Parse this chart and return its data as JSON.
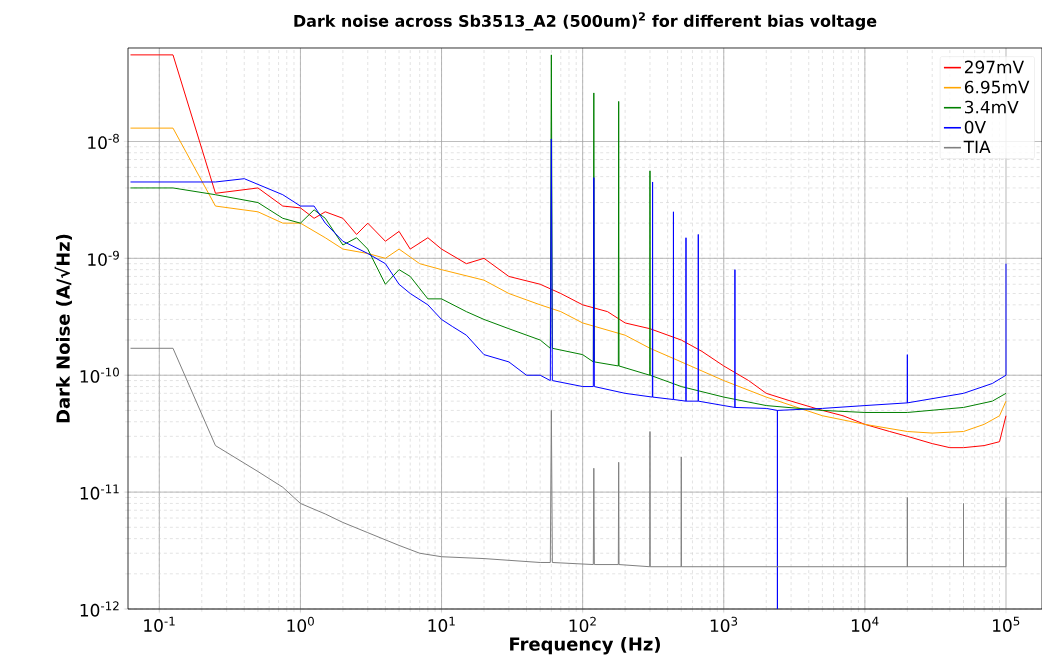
{
  "chart_data": {
    "type": "line",
    "title": "Dark noise across Sb3513_A2 (500um)$^{2}$ for different bias voltage",
    "xlabel": "Frequency (Hz)",
    "ylabel": "Dark Noise (A/√Hz)",
    "log": "xy",
    "grid": true,
    "legend": "top right",
    "marker": "none",
    "line_style": "solid",
    "xlim": [
      0.06,
      180000
    ],
    "ylim": [
      1e-12,
      6.3e-08
    ],
    "xticks": [
      {
        "value": 0.1,
        "label": "10$^{-1}$"
      },
      {
        "value": 1,
        "label": "10$^{0}$"
      },
      {
        "value": 10,
        "label": "10$^{1}$"
      },
      {
        "value": 100,
        "label": "10$^{2}$"
      },
      {
        "value": 1000,
        "label": "10$^{3}$"
      },
      {
        "value": 10000,
        "label": "10$^{4}$"
      },
      {
        "value": 100000,
        "label": "10$^{5}$"
      }
    ],
    "yticks": [
      {
        "value": 1e-12,
        "label": "10$^{-12}$"
      },
      {
        "value": 1e-11,
        "label": "10$^{-11}$"
      },
      {
        "value": 1e-10,
        "label": "10$^{-10}$"
      },
      {
        "value": 1e-09,
        "label": "10$^{-9}$"
      },
      {
        "value": 1e-08,
        "label": "10$^{-8}$"
      }
    ],
    "series": [
      {
        "name": "297mV",
        "color": "#ff0000",
        "x": [
          0.0625,
          0.125,
          0.25,
          0.5,
          0.75,
          1,
          1.25,
          1.5,
          2,
          2.5,
          3,
          4,
          5,
          6,
          8,
          10,
          15,
          20,
          30,
          50,
          70,
          100,
          150,
          200,
          300,
          500,
          700,
          1000,
          1500,
          2000,
          3000,
          5000,
          7000,
          10000,
          15000,
          20000,
          30000,
          40000,
          50000,
          70000,
          90000,
          100000
        ],
        "values": [
          5.5e-08,
          5.5e-08,
          3.6e-09,
          4e-09,
          2.8e-09,
          2.7e-09,
          2.2e-09,
          2.5e-09,
          2.2e-09,
          1.6e-09,
          2e-09,
          1.4e-09,
          1.7e-09,
          1.2e-09,
          1.5e-09,
          1.2e-09,
          9e-10,
          1e-09,
          7e-10,
          6e-10,
          5e-10,
          4e-10,
          3.5e-10,
          2.8e-10,
          2.5e-10,
          2e-10,
          1.6e-10,
          1.2e-10,
          9e-11,
          7e-11,
          6e-11,
          5e-11,
          4.5e-11,
          3.8e-11,
          3.3e-11,
          3e-11,
          2.6e-11,
          2.4e-11,
          2.4e-11,
          2.5e-11,
          2.7e-11,
          4.5e-11
        ]
      },
      {
        "name": "6.95mV",
        "color": "#ffa500",
        "x": [
          0.0625,
          0.125,
          0.25,
          0.5,
          0.75,
          1,
          1.5,
          2,
          3,
          4,
          5,
          7,
          10,
          20,
          30,
          50,
          70,
          100,
          200,
          300,
          500,
          1000,
          2000,
          5000,
          10000,
          20000,
          30000,
          50000,
          70000,
          90000,
          100000
        ],
        "values": [
          1.3e-08,
          1.3e-08,
          2.8e-09,
          2.5e-09,
          2e-09,
          2e-09,
          1.5e-09,
          1.2e-09,
          1.1e-09,
          1e-09,
          1.2e-09,
          9e-10,
          8e-10,
          6.5e-10,
          5e-10,
          4e-10,
          3.5e-10,
          2.8e-10,
          2.2e-10,
          1.7e-10,
          1.3e-10,
          9e-11,
          6.5e-11,
          4.5e-11,
          3.8e-11,
          3.3e-11,
          3.2e-11,
          3.3e-11,
          3.8e-11,
          4.5e-11,
          6e-11
        ]
      },
      {
        "name": "3.4mV",
        "color": "#008000",
        "x": [
          0.0625,
          0.125,
          0.25,
          0.5,
          0.75,
          1,
          1.25,
          1.5,
          2,
          2.5,
          3,
          4,
          5,
          6,
          8,
          10,
          15,
          20,
          30,
          50,
          59,
          60,
          61,
          100,
          119,
          120,
          121,
          179,
          180,
          181,
          299,
          300,
          301,
          500,
          1000,
          2000,
          5000,
          10000,
          20000,
          50000,
          80000,
          100000
        ],
        "values": [
          4e-09,
          4e-09,
          3.5e-09,
          3e-09,
          2.2e-09,
          2e-09,
          2.6e-09,
          2.2e-09,
          1.3e-09,
          1.5e-09,
          1.2e-09,
          6e-10,
          8e-10,
          7e-10,
          4.5e-10,
          4.5e-10,
          3.5e-10,
          3e-10,
          2.5e-10,
          2e-10,
          1.7e-10,
          5.5e-08,
          1.7e-10,
          1.5e-10,
          1.3e-10,
          2.6e-08,
          1.3e-10,
          1.2e-10,
          2.2e-08,
          1.2e-10,
          1e-10,
          5.6e-09,
          1e-10,
          8e-11,
          6.5e-11,
          5.5e-11,
          5e-11,
          4.8e-11,
          4.8e-11,
          5.3e-11,
          6e-11,
          7e-11
        ]
      },
      {
        "name": "0V",
        "color": "#0000ff",
        "x": [
          0.0625,
          0.125,
          0.25,
          0.4,
          0.75,
          1,
          1.25,
          1.5,
          2,
          3,
          4,
          5,
          6,
          8,
          10,
          12,
          15,
          20,
          30,
          40,
          50,
          59,
          60,
          61,
          100,
          119,
          120,
          121,
          200,
          312,
          313,
          314,
          439,
          440,
          441,
          539,
          540,
          541,
          659,
          660,
          661,
          1000,
          1199,
          1200,
          1201,
          2000,
          2399,
          2400,
          2401,
          5000,
          10000,
          19999,
          20000,
          20001,
          50000,
          80000,
          99999,
          100000
        ],
        "values": [
          4.5e-09,
          4.5e-09,
          4.5e-09,
          4.8e-09,
          3.5e-09,
          2.8e-09,
          2.8e-09,
          2e-09,
          1.4e-09,
          1.1e-09,
          9e-10,
          6e-10,
          5e-10,
          4e-10,
          3e-10,
          2.6e-10,
          2.2e-10,
          1.5e-10,
          1.3e-10,
          1e-10,
          1e-10,
          9e-11,
          1.05e-08,
          9e-11,
          8e-11,
          8e-11,
          4.9e-09,
          8e-11,
          7e-11,
          6.5e-11,
          4.5e-09,
          6.5e-11,
          6.2e-11,
          2.5e-09,
          6.2e-11,
          6e-11,
          1.5e-09,
          6e-11,
          6e-11,
          1.6e-09,
          6e-11,
          5.5e-11,
          5.3e-11,
          8e-10,
          5.3e-11,
          5.2e-11,
          5e-11,
          1e-12,
          5e-11,
          5.2e-11,
          5.5e-11,
          5.8e-11,
          1.5e-10,
          5.8e-11,
          7e-11,
          8.5e-11,
          1e-10,
          9e-10
        ]
      },
      {
        "name": "TIA",
        "color": "#808080",
        "x": [
          0.0625,
          0.125,
          0.25,
          0.5,
          0.75,
          1,
          1.5,
          2,
          3,
          5,
          7,
          10,
          20,
          50,
          59,
          60,
          61,
          119,
          120,
          121,
          179,
          180,
          181,
          299,
          300,
          301,
          499,
          500,
          501,
          1000,
          5000,
          19999,
          20000,
          20001,
          49999,
          50000,
          50001,
          99999,
          100000
        ],
        "values": [
          1.7e-10,
          1.7e-10,
          2.5e-11,
          1.5e-11,
          1.1e-11,
          8e-12,
          6.5e-12,
          5.5e-12,
          4.5e-12,
          3.5e-12,
          3e-12,
          2.8e-12,
          2.7e-12,
          2.5e-12,
          2.5e-12,
          5e-11,
          2.5e-12,
          2.4e-12,
          1.6e-11,
          2.4e-12,
          2.4e-12,
          1.8e-11,
          2.4e-12,
          2.3e-12,
          3.3e-11,
          2.3e-12,
          2.3e-12,
          2e-11,
          2.3e-12,
          2.3e-12,
          2.3e-12,
          2.3e-12,
          9e-12,
          2.3e-12,
          2.3e-12,
          8e-12,
          2.3e-12,
          2.3e-12,
          9e-12
        ]
      }
    ]
  }
}
